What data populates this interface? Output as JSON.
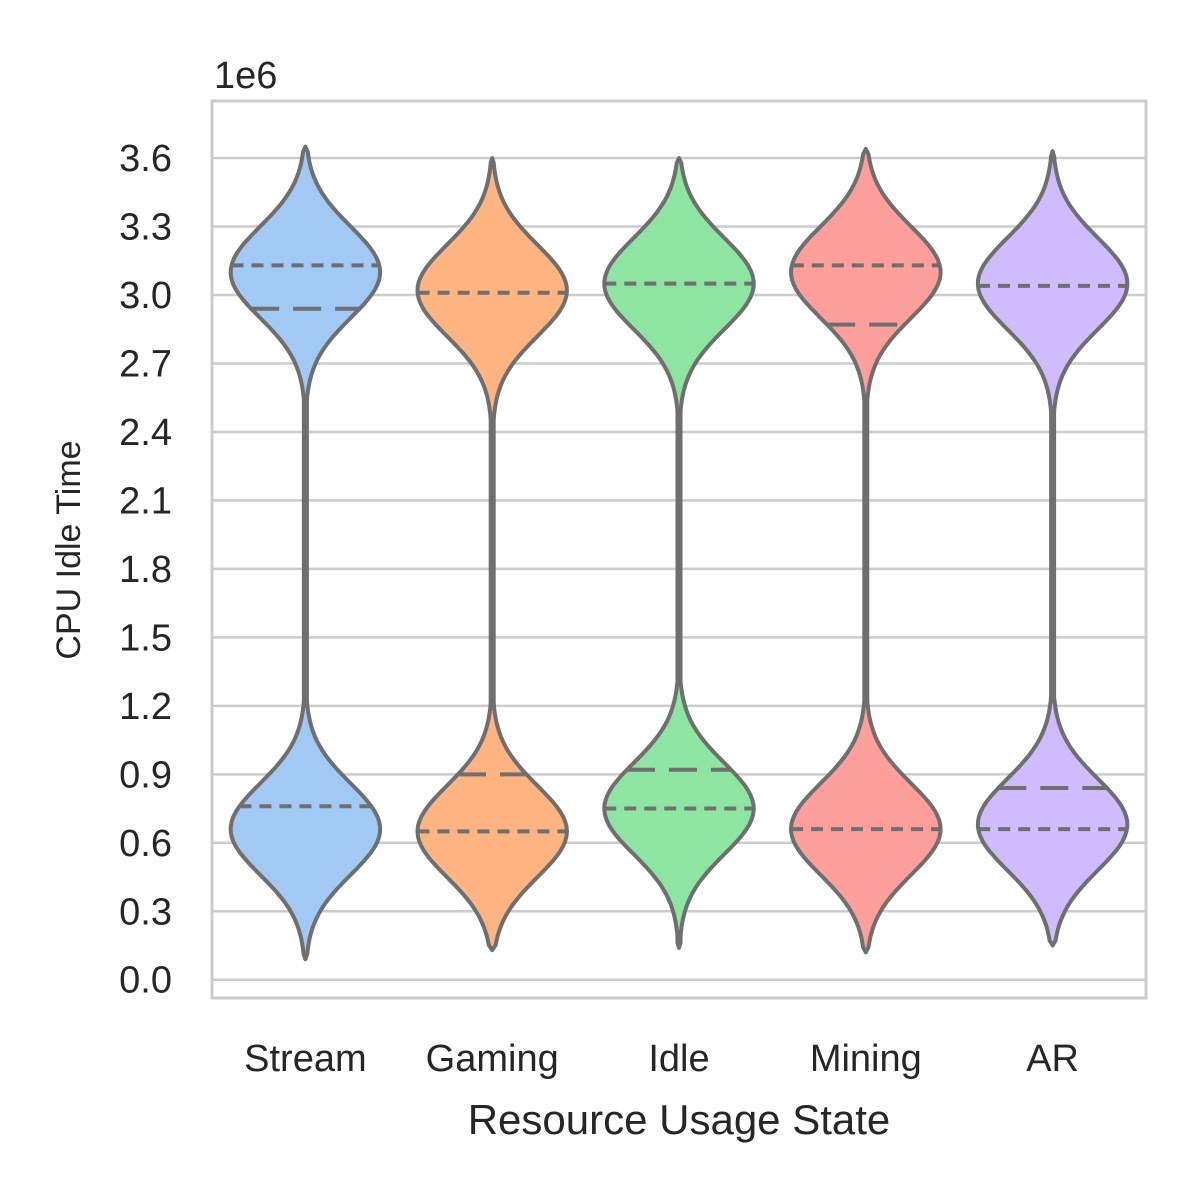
{
  "chart_data": {
    "type": "violin",
    "title": "",
    "xlabel": "Resource Usage State",
    "ylabel": "CPU Idle Time",
    "y_offset_label": "1e6",
    "ylim": [
      -0.08,
      3.85
    ],
    "yticks": [
      0.0,
      0.3,
      0.6,
      0.9,
      1.2,
      1.5,
      1.8,
      2.1,
      2.4,
      2.7,
      3.0,
      3.3,
      3.6
    ],
    "ytick_labels": [
      "0.0",
      "0.3",
      "0.6",
      "0.9",
      "1.2",
      "1.5",
      "1.8",
      "2.1",
      "2.4",
      "2.7",
      "3.0",
      "3.3",
      "3.6"
    ],
    "grid": "horizontal",
    "inner": "quartile",
    "categories": [
      "Stream",
      "Gaming",
      "Idle",
      "Mining",
      "AR"
    ],
    "colors": {
      "Stream": "#a1c9f4",
      "Gaming": "#ffb482",
      "Idle": "#8de5a1",
      "Mining": "#ff9f9b",
      "AR": "#d0bbff",
      "outline": "#6f6f6f",
      "grid": "#cccccc"
    },
    "violins": [
      {
        "name": "Stream",
        "min": 0.09,
        "max": 3.65,
        "modes": [
          0.66,
          3.1
        ],
        "q1": 0.76,
        "median": 2.94,
        "q3": 3.13
      },
      {
        "name": "Gaming",
        "min": 0.13,
        "max": 3.6,
        "modes": [
          0.65,
          3.02
        ],
        "q1": 0.65,
        "median": 0.9,
        "q3": 3.01
      },
      {
        "name": "Idle",
        "min": 0.14,
        "max": 3.6,
        "modes": [
          0.75,
          3.05
        ],
        "q1": 0.75,
        "median": 0.92,
        "q3": 3.05
      },
      {
        "name": "Mining",
        "min": 0.12,
        "max": 3.64,
        "modes": [
          0.66,
          3.1
        ],
        "q1": 0.66,
        "median": 2.87,
        "q3": 3.13
      },
      {
        "name": "AR",
        "min": 0.15,
        "max": 3.63,
        "modes": [
          0.68,
          3.05
        ],
        "q1": 0.66,
        "median": 0.84,
        "q3": 3.04
      }
    ]
  }
}
